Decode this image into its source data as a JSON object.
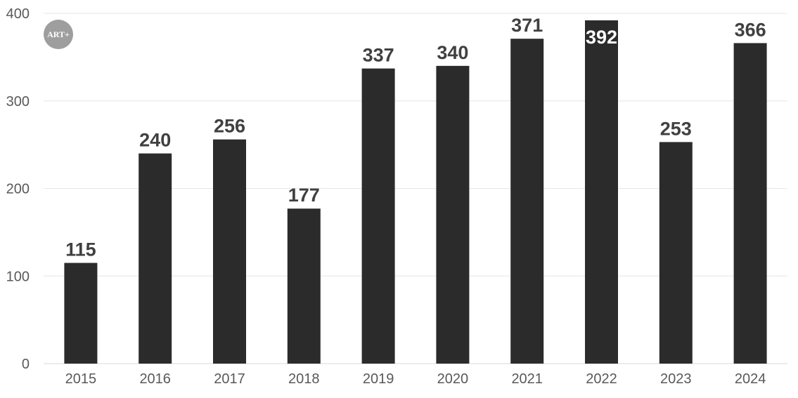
{
  "logo": {
    "text": "ART+"
  },
  "chart_data": {
    "type": "bar",
    "categories": [
      "2015",
      "2016",
      "2017",
      "2018",
      "2019",
      "2020",
      "2021",
      "2022",
      "2023",
      "2024"
    ],
    "values": [
      115,
      240,
      256,
      177,
      337,
      340,
      371,
      392,
      253,
      366
    ],
    "title": "",
    "xlabel": "",
    "ylabel": "",
    "ylim": [
      0,
      400
    ],
    "yticks": [
      0,
      100,
      200,
      300,
      400
    ],
    "grid": true,
    "legend": "none",
    "bar_color": "#2b2b2b",
    "data_label_color": "#404040",
    "data_label_inside_color": "#ffffff"
  }
}
